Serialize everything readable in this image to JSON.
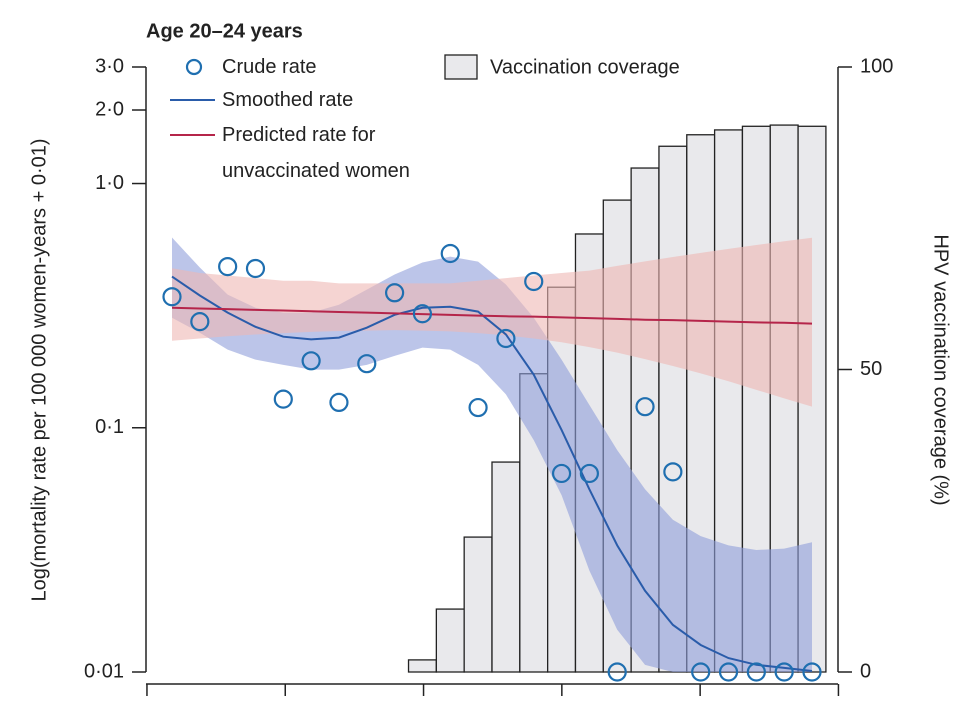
{
  "chart_data": {
    "type": "combo",
    "title": "Age 20–24 years",
    "ylabel": "Log(mortality rate per 100 000 women-years + 0·01)",
    "y2label": "HPV vaccination coverage (%)",
    "yscale": "log",
    "ylim": [
      0.01,
      3.0
    ],
    "yticks": [
      {
        "value": 0.01,
        "label": "0·01"
      },
      {
        "value": 0.1,
        "label": "0·1"
      },
      {
        "value": 1,
        "label": "1·0"
      },
      {
        "value": 2,
        "label": "2·0"
      },
      {
        "value": 3,
        "label": "3·0"
      }
    ],
    "y2lim": [
      0,
      100
    ],
    "y2ticks": [
      0,
      50,
      100
    ],
    "categories": [
      null,
      null,
      null,
      null,
      null,
      null,
      null,
      null,
      null,
      null,
      null,
      null,
      null,
      null,
      null,
      null,
      null,
      null,
      null,
      null,
      null,
      null,
      null,
      null
    ],
    "series": [
      {
        "name": "Crude rate",
        "type": "scatter",
        "color": "#1f6fb0",
        "values": [
          0.344,
          0.272,
          0.457,
          0.449,
          0.131,
          0.188,
          0.127,
          0.183,
          0.357,
          0.293,
          0.517,
          0.121,
          0.232,
          0.397,
          0.065,
          0.065,
          0.01,
          0.122,
          0.066,
          0.01,
          0.01,
          0.01,
          0.01,
          0.01
        ]
      },
      {
        "name": "Smoothed rate",
        "type": "line",
        "color": "#2a5caa",
        "band_color": "#8f9edb",
        "values": [
          0.416,
          0.348,
          0.296,
          0.259,
          0.236,
          0.23,
          0.234,
          0.257,
          0.29,
          0.31,
          0.313,
          0.299,
          0.241,
          0.165,
          0.098,
          0.056,
          0.033,
          0.0215,
          0.0156,
          0.0129,
          0.0114,
          0.0107,
          0.0104,
          0.0101
        ],
        "upper": [
          0.601,
          0.453,
          0.351,
          0.31,
          0.296,
          0.296,
          0.319,
          0.368,
          0.424,
          0.475,
          0.502,
          0.479,
          0.386,
          0.282,
          0.19,
          0.124,
          0.081,
          0.056,
          0.042,
          0.036,
          0.033,
          0.0316,
          0.032,
          0.034
        ],
        "lower": [
          0.282,
          0.245,
          0.209,
          0.19,
          0.181,
          0.173,
          0.173,
          0.181,
          0.197,
          0.213,
          0.209,
          0.181,
          0.137,
          0.089,
          0.053,
          0.026,
          0.0149,
          0.0107,
          0.01,
          0.01,
          0.01,
          0.01,
          0.01,
          0.01
        ]
      },
      {
        "name": "Predicted rate for unvaccinated women",
        "type": "line",
        "color": "#b5254a",
        "band_color": "#eeb8b4",
        "values": [
          0.31,
          0.308,
          0.306,
          0.304,
          0.302,
          0.3,
          0.298,
          0.296,
          0.294,
          0.292,
          0.29,
          0.288,
          0.286,
          0.285,
          0.283,
          0.281,
          0.279,
          0.277,
          0.276,
          0.274,
          0.272,
          0.27,
          0.269,
          0.267
        ],
        "upper": [
          0.45,
          0.43,
          0.42,
          0.41,
          0.4,
          0.4,
          0.39,
          0.39,
          0.39,
          0.39,
          0.39,
          0.4,
          0.41,
          0.42,
          0.43,
          0.44,
          0.46,
          0.48,
          0.5,
          0.52,
          0.54,
          0.56,
          0.58,
          0.6
        ],
        "lower": [
          0.227,
          0.232,
          0.237,
          0.241,
          0.244,
          0.247,
          0.249,
          0.25,
          0.251,
          0.25,
          0.248,
          0.244,
          0.239,
          0.232,
          0.224,
          0.214,
          0.203,
          0.191,
          0.179,
          0.167,
          0.155,
          0.143,
          0.132,
          0.122
        ]
      },
      {
        "name": "Vaccination coverage",
        "type": "bar",
        "axis": "y2",
        "color": "#e9e9ec",
        "values": [
          null,
          null,
          null,
          null,
          null,
          null,
          null,
          null,
          null,
          2.0,
          10.4,
          22.3,
          34.7,
          49.3,
          63.6,
          72.4,
          78.0,
          83.3,
          86.9,
          88.8,
          89.6,
          90.2,
          90.4,
          90.2
        ]
      }
    ]
  }
}
